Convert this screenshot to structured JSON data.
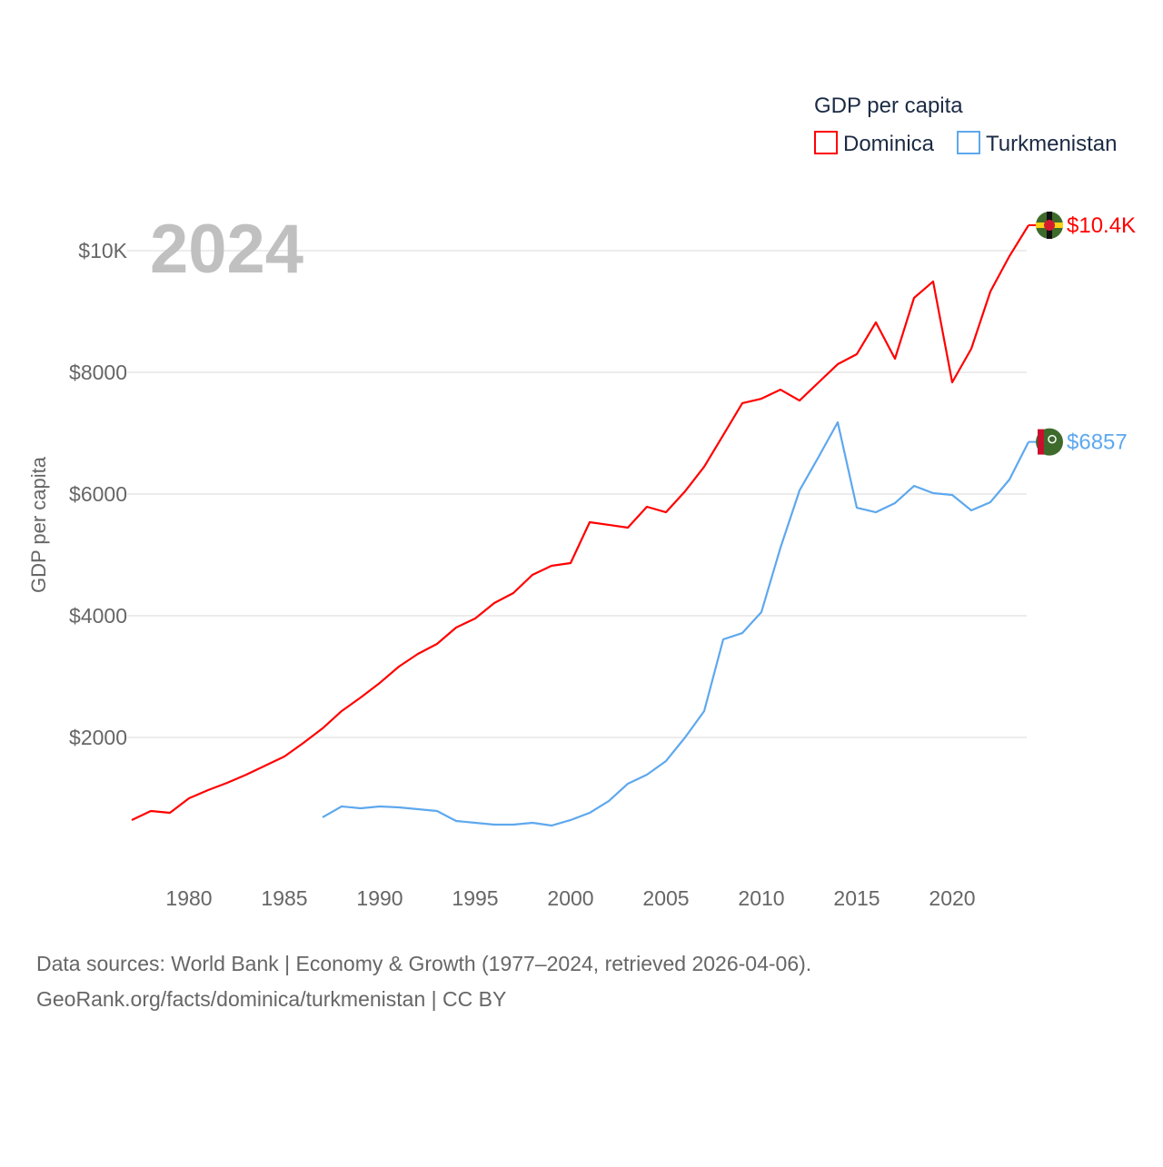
{
  "chart_data": {
    "type": "line",
    "year_label": "2024",
    "ylabel": "GDP per capita",
    "legend_title": "GDP per capita",
    "legend_position": "top-right",
    "ylim": [
      0,
      10500
    ],
    "xlim": [
      1977,
      2024
    ],
    "y_ticks": [
      {
        "value": 2000,
        "label": "$2000"
      },
      {
        "value": 4000,
        "label": "$4000"
      },
      {
        "value": 6000,
        "label": "$6000"
      },
      {
        "value": 8000,
        "label": "$8000"
      },
      {
        "value": 10000,
        "label": "$10K"
      }
    ],
    "x_ticks": [
      {
        "value": 1980,
        "label": "1980"
      },
      {
        "value": 1985,
        "label": "1985"
      },
      {
        "value": 1990,
        "label": "1990"
      },
      {
        "value": 1995,
        "label": "1995"
      },
      {
        "value": 2000,
        "label": "2000"
      },
      {
        "value": 2005,
        "label": "2005"
      },
      {
        "value": 2010,
        "label": "2010"
      },
      {
        "value": 2015,
        "label": "2015"
      },
      {
        "value": 2020,
        "label": "2020"
      }
    ],
    "grid": true,
    "series": [
      {
        "name": "Dominica",
        "color": "#ff0000",
        "end_label": "$10.4K",
        "start_year": 1977,
        "values": [
          642,
          791,
          761,
          1000,
          1134,
          1254,
          1388,
          1537,
          1687,
          1910,
          2149,
          2433,
          2657,
          2896,
          3164,
          3373,
          3537,
          3806,
          3955,
          4209,
          4373,
          4672,
          4821,
          4866,
          5537,
          5493,
          5448,
          5791,
          5701,
          6045,
          6448,
          6970,
          7493,
          7567,
          7716,
          7537,
          7836,
          8134,
          8299,
          8821,
          8224,
          9224,
          9493,
          7836,
          8388,
          9328,
          9910,
          10418
        ]
      },
      {
        "name": "Turkmenistan",
        "color": "#5ea8ee",
        "end_label": "$6857",
        "start_year": 1987,
        "values": [
          687,
          866,
          836,
          866,
          851,
          821,
          791,
          627,
          597,
          567,
          567,
          597,
          552,
          642,
          761,
          955,
          1239,
          1388,
          1612,
          2000,
          2433,
          3612,
          3716,
          4060,
          5119,
          6060,
          6612,
          7179,
          5776,
          5701,
          5851,
          6134,
          6015,
          5985,
          5731,
          5866,
          6239,
          6857
        ]
      }
    ]
  },
  "footer": {
    "line1": "Data sources: World Bank | Economy & Growth (1977–2024, retrieved 2026-04-06).",
    "line2": "GeoRank.org/facts/dominica/turkmenistan | CC BY"
  }
}
